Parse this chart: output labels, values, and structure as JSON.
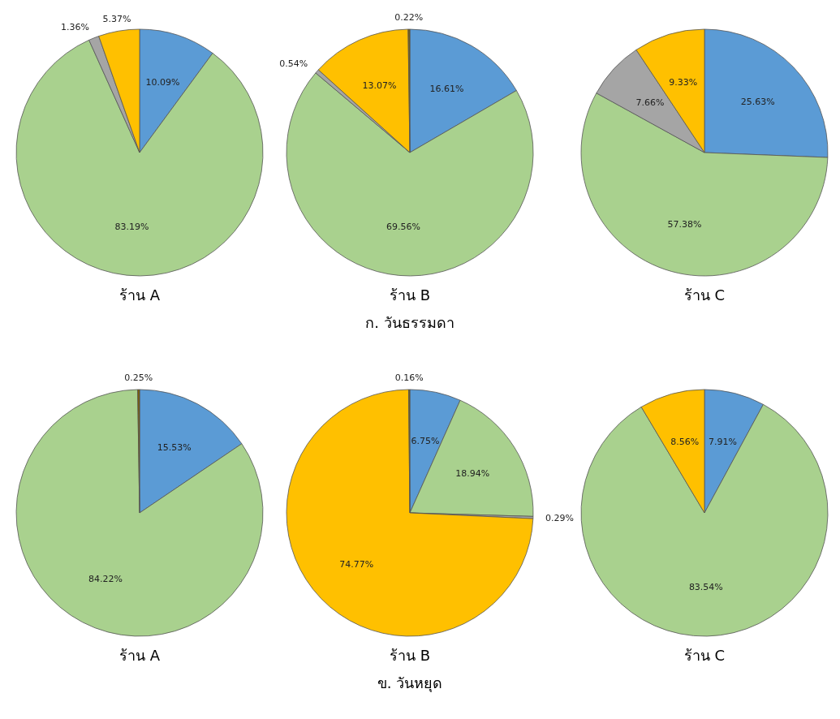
{
  "chart_data": [
    {
      "type": "pie",
      "title": "ร้าน A",
      "categories": [
        null,
        null,
        null,
        null
      ],
      "values": [
        10.09,
        83.19,
        1.36,
        5.37
      ],
      "value_labels": [
        "10.09%",
        "83.19%",
        "1.36%",
        "5.37%"
      ],
      "colors": [
        "#5b9bd5",
        "#a9d18e",
        "#a5a5a5",
        "#ffc000"
      ]
    },
    {
      "type": "pie",
      "title": "ร้าน B",
      "categories": [
        null,
        null,
        null,
        null,
        null
      ],
      "values": [
        16.61,
        69.56,
        0.54,
        13.07,
        0.22
      ],
      "value_labels": [
        "16.61%",
        "69.56%",
        "0.54%",
        "13.07%",
        "0.22%"
      ],
      "colors": [
        "#5b9bd5",
        "#a9d18e",
        "#a5a5a5",
        "#ffc000",
        "#7f6000"
      ],
      "annotations": [
        "ก. วันธรรมดา"
      ]
    },
    {
      "type": "pie",
      "title": "ร้าน C",
      "categories": [
        null,
        null,
        null,
        null
      ],
      "values": [
        25.63,
        57.38,
        7.66,
        9.33
      ],
      "value_labels": [
        "25.63%",
        "57.38%",
        "7.66%",
        "9.33%"
      ],
      "colors": [
        "#5b9bd5",
        "#a9d18e",
        "#a5a5a5",
        "#ffc000"
      ]
    },
    {
      "type": "pie",
      "title": "ร้าน A",
      "categories": [
        null,
        null,
        null
      ],
      "values": [
        15.53,
        84.22,
        0.25
      ],
      "value_labels": [
        "15.53%",
        "84.22%",
        "0.25%"
      ],
      "colors": [
        "#5b9bd5",
        "#a9d18e",
        "#7f6000"
      ]
    },
    {
      "type": "pie",
      "title": "ร้าน B",
      "categories": [
        null,
        null,
        null,
        null,
        null
      ],
      "values": [
        6.75,
        18.94,
        0.29,
        74.77,
        0.16
      ],
      "value_labels": [
        "6.75%",
        "18.94%",
        "0.29%",
        "74.77%",
        "0.16%"
      ],
      "colors": [
        "#5b9bd5",
        "#a9d18e",
        "#a5a5a5",
        "#ffc000",
        "#7f6000"
      ],
      "annotations": [
        "ข. วันหยุด"
      ]
    },
    {
      "type": "pie",
      "title": "ร้าน C",
      "categories": [
        null,
        null,
        null
      ],
      "values": [
        7.91,
        83.54,
        8.56
      ],
      "value_labels": [
        "7.91%",
        "83.54%",
        "8.56%"
      ],
      "colors": [
        "#5b9bd5",
        "#a9d18e",
        "#ffc000"
      ]
    }
  ]
}
